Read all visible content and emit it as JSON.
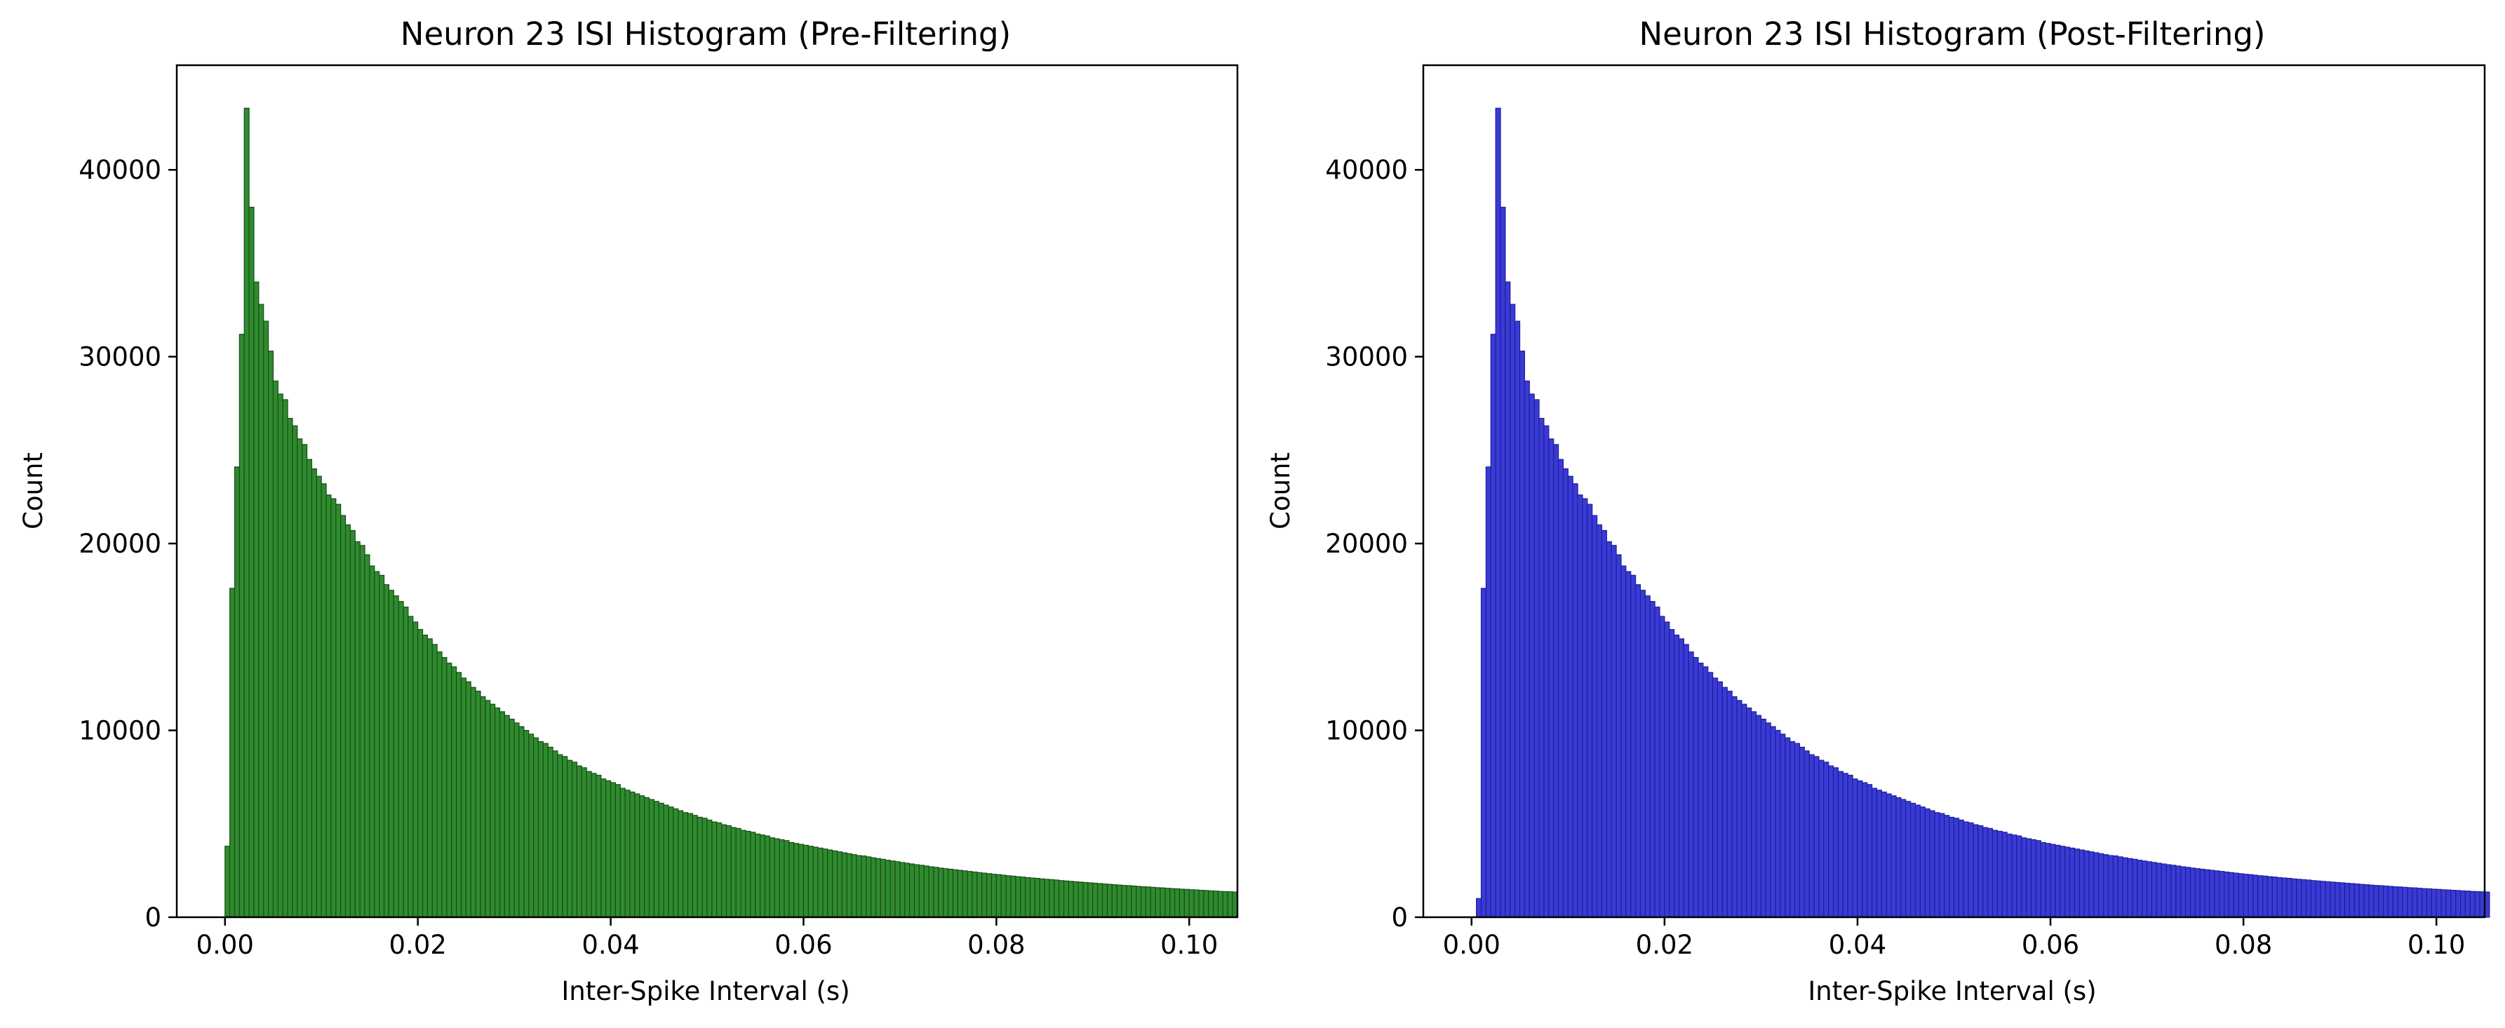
{
  "chart_data": [
    {
      "type": "bar",
      "title": "Neuron 23 ISI Histogram (Pre-Filtering)",
      "xlabel": "Inter-Spike Interval (s)",
      "ylabel": "Count",
      "xlim": [
        -0.005,
        0.105
      ],
      "ylim": [
        0,
        45600
      ],
      "xticks": [
        0.0,
        0.02,
        0.04,
        0.06,
        0.08,
        0.1
      ],
      "xtick_labels": [
        "0.00",
        "0.02",
        "0.04",
        "0.06",
        "0.08",
        "0.10"
      ],
      "yticks": [
        0,
        10000,
        20000,
        30000,
        40000
      ],
      "ytick_labels": [
        "0",
        "10000",
        "20000",
        "30000",
        "40000"
      ],
      "bin_start": 0.0,
      "bin_width": 0.0005,
      "bar_color": "#2e8b2e",
      "edge_color": "#1a4d1a",
      "grid": false,
      "values": [
        3800,
        17600,
        24100,
        31200,
        43300,
        38000,
        34000,
        32800,
        31900,
        30300,
        28700,
        28000,
        27700,
        26700,
        26300,
        25600,
        25300,
        24500,
        24000,
        23600,
        23200,
        22600,
        22400,
        22100,
        21500,
        21000,
        20700,
        20100,
        19900,
        19400,
        18800,
        18500,
        18300,
        17800,
        17500,
        17200,
        16900,
        16600,
        16100,
        15800,
        15400,
        15100,
        14900,
        14600,
        14200,
        13900,
        13600,
        13400,
        13100,
        12800,
        12600,
        12300,
        12100,
        11800,
        11600,
        11400,
        11200,
        11000,
        10800,
        10600,
        10400,
        10200,
        10000,
        9800,
        9600,
        9400,
        9300,
        9100,
        8900,
        8700,
        8600,
        8400,
        8300,
        8100,
        8000,
        7800,
        7700,
        7600,
        7400,
        7300,
        7200,
        7100,
        6900,
        6800,
        6700,
        6600,
        6500,
        6400,
        6300,
        6200,
        6100,
        6000,
        5900,
        5800,
        5700,
        5600,
        5550,
        5450,
        5350,
        5300,
        5200,
        5100,
        5050,
        4950,
        4900,
        4800,
        4750,
        4650,
        4600,
        4550,
        4450,
        4400,
        4350,
        4250,
        4200,
        4150,
        4100,
        4000,
        3950,
        3900,
        3850,
        3800,
        3750,
        3700,
        3650,
        3600,
        3550,
        3500,
        3450,
        3400,
        3350,
        3300,
        3280,
        3230,
        3180,
        3140,
        3100,
        3050,
        3010,
        2970,
        2930,
        2890,
        2850,
        2810,
        2780,
        2740,
        2700,
        2670,
        2630,
        2600,
        2570,
        2540,
        2510,
        2480,
        2450,
        2420,
        2390,
        2360,
        2330,
        2300,
        2280,
        2250,
        2220,
        2200,
        2170,
        2150,
        2120,
        2100,
        2080,
        2050,
        2030,
        2010,
        1990,
        1960,
        1940,
        1920,
        1900,
        1880,
        1860,
        1840,
        1820,
        1800,
        1780,
        1760,
        1740,
        1720,
        1700,
        1690,
        1670,
        1650,
        1630,
        1620,
        1600,
        1580,
        1570,
        1550,
        1530,
        1520,
        1500,
        1490,
        1470,
        1460,
        1440,
        1430,
        1410,
        1400,
        1380,
        1370,
        1360,
        1350
      ]
    },
    {
      "type": "bar",
      "title": "Neuron 23 ISI Histogram (Post-Filtering)",
      "xlabel": "Inter-Spike Interval (s)",
      "ylabel": "Count",
      "xlim": [
        -0.005,
        0.105
      ],
      "ylim": [
        0,
        45600
      ],
      "xticks": [
        0.0,
        0.02,
        0.04,
        0.06,
        0.08,
        0.1
      ],
      "xtick_labels": [
        "0.00",
        "0.02",
        "0.04",
        "0.06",
        "0.08",
        "0.10"
      ],
      "yticks": [
        0,
        10000,
        20000,
        30000,
        40000
      ],
      "ytick_labels": [
        "0",
        "10000",
        "20000",
        "30000",
        "40000"
      ],
      "bin_start": 0.0,
      "bin_width": 0.0005,
      "bar_color": "#3a3ad6",
      "edge_color": "#1f1f99",
      "grid": false,
      "values": [
        0,
        1000,
        17600,
        24100,
        31200,
        43300,
        38000,
        34000,
        32800,
        31900,
        30300,
        28700,
        28000,
        27700,
        26700,
        26300,
        25600,
        25300,
        24500,
        24000,
        23600,
        23200,
        22600,
        22400,
        22100,
        21500,
        21000,
        20700,
        20100,
        19900,
        19400,
        18800,
        18500,
        18300,
        17800,
        17500,
        17200,
        16900,
        16600,
        16100,
        15800,
        15400,
        15100,
        14900,
        14600,
        14200,
        13900,
        13600,
        13400,
        13100,
        12800,
        12600,
        12300,
        12100,
        11800,
        11600,
        11400,
        11200,
        11000,
        10800,
        10600,
        10400,
        10200,
        10000,
        9800,
        9600,
        9400,
        9300,
        9100,
        8900,
        8700,
        8600,
        8400,
        8300,
        8100,
        8000,
        7800,
        7700,
        7600,
        7400,
        7300,
        7200,
        7100,
        6900,
        6800,
        6700,
        6600,
        6500,
        6400,
        6300,
        6200,
        6100,
        6000,
        5900,
        5800,
        5700,
        5600,
        5550,
        5450,
        5350,
        5300,
        5200,
        5100,
        5050,
        4950,
        4900,
        4800,
        4750,
        4650,
        4600,
        4550,
        4450,
        4400,
        4350,
        4250,
        4200,
        4150,
        4100,
        4000,
        3950,
        3900,
        3850,
        3800,
        3750,
        3700,
        3650,
        3600,
        3550,
        3500,
        3450,
        3400,
        3350,
        3300,
        3280,
        3230,
        3180,
        3140,
        3100,
        3050,
        3010,
        2970,
        2930,
        2890,
        2850,
        2810,
        2780,
        2740,
        2700,
        2670,
        2630,
        2600,
        2570,
        2540,
        2510,
        2480,
        2450,
        2420,
        2390,
        2360,
        2330,
        2300,
        2280,
        2250,
        2220,
        2200,
        2170,
        2150,
        2120,
        2100,
        2080,
        2050,
        2030,
        2010,
        1990,
        1960,
        1940,
        1920,
        1900,
        1880,
        1860,
        1840,
        1820,
        1800,
        1780,
        1760,
        1740,
        1720,
        1700,
        1690,
        1670,
        1650,
        1630,
        1620,
        1600,
        1580,
        1570,
        1550,
        1530,
        1520,
        1500,
        1490,
        1470,
        1460,
        1440,
        1430,
        1410,
        1400,
        1380,
        1370,
        1360,
        1350
      ]
    }
  ]
}
